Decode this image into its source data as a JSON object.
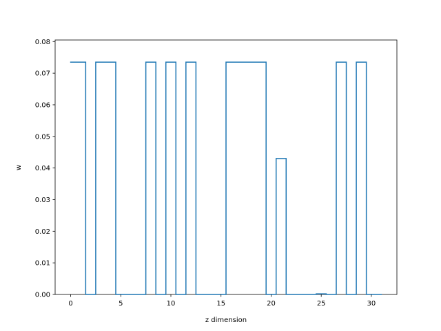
{
  "chart_data": {
    "type": "line",
    "drawstyle": "steps-mid",
    "title": "",
    "xlabel": "z dimension",
    "ylabel": "w",
    "xlim": [
      -1.55,
      32.55
    ],
    "ylim": [
      0.0,
      0.0805
    ],
    "x_ticks": [
      0,
      5,
      10,
      15,
      20,
      25,
      30
    ],
    "y_ticks": [
      0.0,
      0.01,
      0.02,
      0.03,
      0.04,
      0.05,
      0.06,
      0.07,
      0.08
    ],
    "x_tick_labels": [
      "0",
      "5",
      "10",
      "15",
      "20",
      "25",
      "30"
    ],
    "y_tick_labels": [
      "0.00",
      "0.01",
      "0.02",
      "0.03",
      "0.04",
      "0.05",
      "0.06",
      "0.07",
      "0.08"
    ],
    "grid": false,
    "series": [
      {
        "color": "#1f77b4",
        "x": [
          0,
          1,
          2,
          3,
          4,
          5,
          6,
          7,
          8,
          9,
          10,
          11,
          12,
          13,
          14,
          15,
          16,
          17,
          18,
          19,
          20,
          21,
          22,
          23,
          24,
          25,
          26,
          27,
          28,
          29,
          30,
          31
        ],
        "y": [
          0.0735,
          0.0735,
          0.0,
          0.0735,
          0.0735,
          0.0,
          0.0,
          0.0,
          0.0735,
          0.0,
          0.0735,
          0.0,
          0.0735,
          0.0,
          0.0,
          0.0,
          0.0735,
          0.0735,
          0.0735,
          0.0735,
          0.0,
          0.043,
          0.0,
          0.0,
          0.0,
          0.0002,
          0.0,
          0.0735,
          0.0,
          0.0735,
          0.0,
          0.0
        ]
      }
    ]
  }
}
